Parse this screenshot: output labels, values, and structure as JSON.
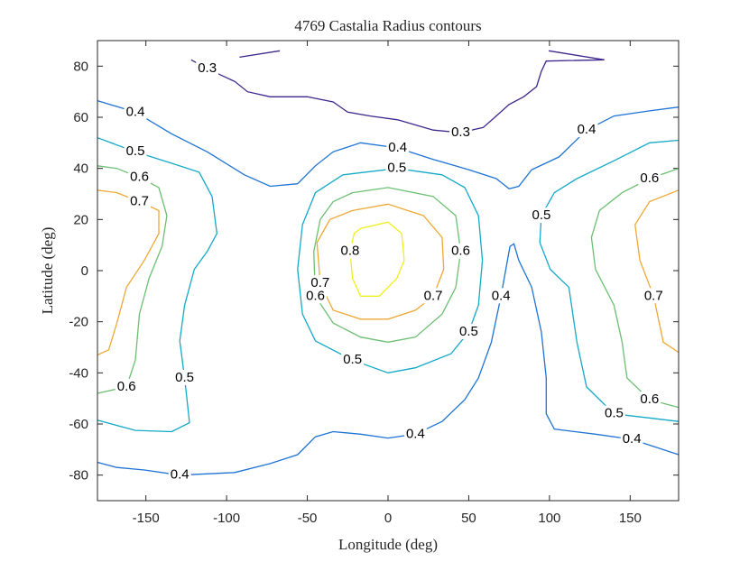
{
  "chart_data": {
    "type": "contour",
    "title": "4769 Castalia Radius contours",
    "x_label": "Longitude (deg)",
    "y_label": "Latitude (deg)",
    "xlim": [
      -180,
      180
    ],
    "ylim": [
      -90,
      90
    ],
    "xticks": [
      -150,
      -100,
      -50,
      0,
      50,
      100,
      150
    ],
    "yticks": [
      -80,
      -60,
      -40,
      -20,
      0,
      20,
      40,
      60,
      80
    ],
    "contours": [
      {
        "level": 0.3,
        "color": "#3e268c",
        "x": [
          -122,
          -112,
          -95,
          -87,
          -73,
          -50,
          -34,
          -25,
          -11,
          6,
          28,
          45,
          59,
          67,
          75,
          84,
          92,
          95,
          98,
          134,
          99.5
        ],
        "y": [
          82.5,
          79,
          74,
          70,
          68,
          68,
          66,
          62,
          60.5,
          59,
          55,
          54,
          56,
          60.5,
          65,
          68,
          72,
          78,
          82,
          82.5,
          86
        ]
      },
      {
        "level": 0.3,
        "color": "#3e268c",
        "x": [
          -92,
          -67
        ],
        "y": [
          83.5,
          86
        ]
      },
      {
        "level": 0.4,
        "color": "#1f73d4",
        "x": [
          -180,
          -156.5,
          -134,
          -112,
          -89,
          -73,
          -56,
          -45,
          -34,
          -17,
          6,
          28,
          50,
          67,
          75,
          81,
          89,
          106,
          123,
          140,
          162,
          180
        ],
        "y": [
          66.5,
          62,
          53.5,
          46.5,
          37.5,
          33,
          34,
          41,
          46.5,
          50,
          48,
          43.5,
          39.5,
          36,
          32,
          33,
          39.5,
          44.5,
          55,
          60.5,
          62.5,
          64
        ]
      },
      {
        "level": 0.4,
        "color": "#1f73d4",
        "x": [
          -180,
          -168,
          -151,
          -129,
          -95,
          -73,
          -56,
          -45,
          -34,
          -17,
          0,
          17,
          33.5,
          47.5,
          56,
          64,
          70,
          75.5,
          78,
          81,
          89,
          95,
          98,
          98,
          103,
          128.5,
          151,
          180
        ],
        "y": [
          -75,
          -77,
          -78,
          -80,
          -79,
          -75.5,
          -72,
          -65,
          -63,
          -64,
          -65.5,
          -64,
          -59,
          -50.5,
          -42,
          -28,
          -10,
          9.5,
          10.5,
          4,
          -6.5,
          -24,
          -42,
          -56,
          -62,
          -64,
          -66,
          -72
        ]
      },
      {
        "level": 0.5,
        "color": "#15a9c8",
        "x": [
          -180,
          -156.5,
          -134,
          -117,
          -109,
          -106,
          -112,
          -120,
          -126,
          -129,
          -126,
          -123,
          -134,
          -156.5,
          -180
        ],
        "y": [
          52,
          46.5,
          42,
          38.5,
          29,
          14.5,
          7.5,
          0.5,
          -13.5,
          -27.5,
          -42,
          -59.5,
          -63,
          -62.5,
          -58.5
        ]
      },
      {
        "level": 0.5,
        "color": "#15a9c8",
        "x": [
          -28,
          5.5,
          33.5,
          47.5,
          56,
          58.5,
          56,
          50,
          39,
          17,
          0,
          -22,
          -45,
          -53,
          -56,
          -53,
          -45,
          -28
        ],
        "y": [
          37.5,
          40,
          37.5,
          32.5,
          21.5,
          4,
          -13.5,
          -24,
          -32.5,
          -38,
          -40,
          -35,
          -27.5,
          -17,
          0.5,
          18,
          30.5,
          37.5
        ]
      },
      {
        "level": 0.5,
        "color": "#15a9c8",
        "x": [
          180,
          162,
          140,
          117,
          103,
          95,
          94,
          100.5,
          112,
          117,
          123,
          140,
          180
        ],
        "y": [
          51,
          50,
          43,
          36,
          30.5,
          21.5,
          11,
          0.5,
          -6.5,
          -28,
          -45.5,
          -56,
          -59
        ]
      },
      {
        "level": 0.6,
        "color": "#6cbf72",
        "x": [
          -180,
          -168,
          -154,
          -142,
          -137,
          -140,
          -148,
          -154,
          -156.5,
          -162,
          -180
        ],
        "y": [
          41,
          40,
          36.5,
          32.5,
          21.5,
          9.5,
          -3,
          -17,
          -35,
          -45.5,
          -48
        ]
      },
      {
        "level": 0.6,
        "color": "#6cbf72",
        "x": [
          -22,
          0,
          28,
          42,
          45,
          42,
          33.5,
          17,
          0,
          -17,
          -34,
          -45,
          -46,
          -42,
          -34,
          -22
        ],
        "y": [
          30.5,
          32.5,
          29,
          21.5,
          7.5,
          -6.5,
          -17,
          -26,
          -28,
          -26,
          -20.5,
          -10,
          7.5,
          20,
          27,
          30.5
        ]
      },
      {
        "level": 0.6,
        "color": "#6cbf72",
        "x": [
          180,
          162,
          145,
          131,
          126,
          128.5,
          140,
          145,
          148,
          162,
          180
        ],
        "y": [
          40,
          36,
          30.5,
          23.5,
          13,
          0.5,
          -13.5,
          -28,
          -42,
          -50.5,
          -53.5
        ]
      },
      {
        "level": 0.7,
        "color": "#eea838",
        "x": [
          -180,
          -168,
          -154,
          -142,
          -142,
          -151,
          -162,
          -168,
          -173,
          -180
        ],
        "y": [
          31.5,
          30.5,
          27,
          23.5,
          14.5,
          4,
          -6.5,
          -20.5,
          -31,
          -33
        ]
      },
      {
        "level": 0.7,
        "color": "#eea838",
        "x": [
          -22,
          0,
          22,
          33.5,
          34.5,
          28,
          17,
          0,
          -17,
          -34,
          -42,
          -44,
          -36,
          -22
        ],
        "y": [
          23.5,
          26,
          21.5,
          13,
          0.5,
          -10,
          -15.5,
          -19,
          -19,
          -15.5,
          -5,
          11,
          20,
          23.5
        ]
      },
      {
        "level": 0.7,
        "color": "#eea838",
        "x": [
          180,
          162,
          153,
          156,
          164.5,
          170.5,
          180
        ],
        "y": [
          31.5,
          27,
          18,
          4,
          -10,
          -28,
          -32
        ]
      },
      {
        "level": 0.8,
        "color": "#f0f01c",
        "x": [
          -17,
          0,
          8.5,
          10,
          5.5,
          -5.5,
          -17,
          -22,
          -23.5,
          -21,
          -17
        ],
        "y": [
          16.5,
          19,
          14.5,
          4,
          -3,
          -10,
          -10,
          -3,
          7.5,
          14.5,
          16.5
        ]
      }
    ]
  }
}
